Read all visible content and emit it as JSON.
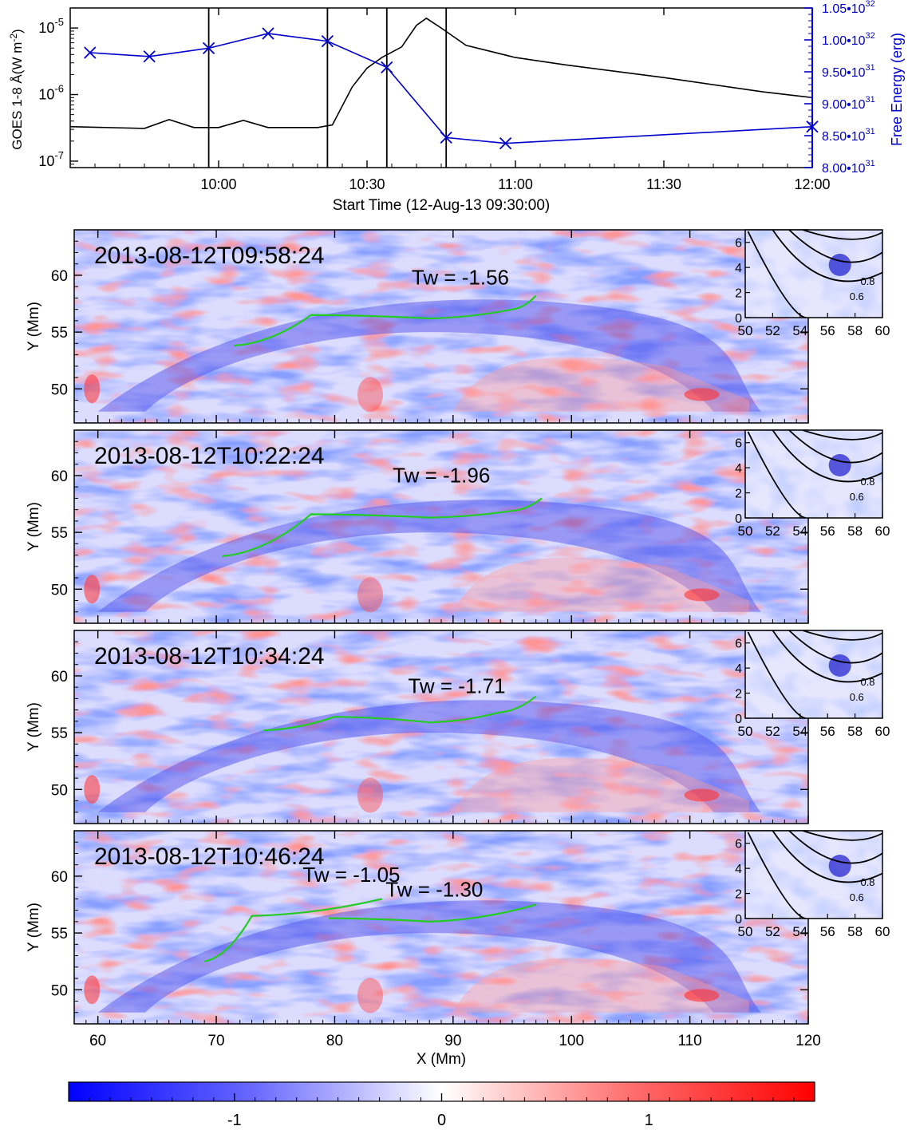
{
  "goes": {
    "xlabel": "Start Time (12-Aug-13 09:30:00)",
    "ylabel_left": "GOES 1-8 Å(W m",
    "ylabel_left_sup": "-2",
    "ylabel_left_close": ")",
    "ylabel_right": "Free Energy (erg)",
    "x_ticks": [
      "10:00",
      "10:30",
      "11:00",
      "11:30",
      "12:00"
    ],
    "y_ticks_left": [
      {
        "base": "10",
        "exp": "-5"
      },
      {
        "base": "10",
        "exp": "-6"
      },
      {
        "base": "10",
        "exp": "-7"
      }
    ],
    "y_ticks_right": [
      {
        "mant": "1.05•10",
        "exp": "32"
      },
      {
        "mant": "1.00•10",
        "exp": "32"
      },
      {
        "mant": "9.50•10",
        "exp": "31"
      },
      {
        "mant": "9.00•10",
        "exp": "31"
      },
      {
        "mant": "8.50•10",
        "exp": "31"
      },
      {
        "mant": "8.00•10",
        "exp": "31"
      }
    ]
  },
  "maps": {
    "ylabel": "Y (Mm)",
    "xlabel": "X (Mm)",
    "x_ticks": [
      "60",
      "70",
      "80",
      "90",
      "100",
      "110",
      "120"
    ],
    "y_ticks": [
      "60",
      "55",
      "50"
    ],
    "panels": [
      {
        "timestamp": "2013-08-12T09:58:24",
        "tw_labels": [
          "Tw = -1.56"
        ]
      },
      {
        "timestamp": "2013-08-12T10:22:24",
        "tw_labels": [
          "Tw = -1.96"
        ]
      },
      {
        "timestamp": "2013-08-12T10:34:24",
        "tw_labels": [
          "Tw = -1.71"
        ]
      },
      {
        "timestamp": "2013-08-12T10:46:24",
        "tw_labels": [
          "Tw = -1.05",
          "Tw = -1.30"
        ]
      }
    ],
    "inset": {
      "x_ticks": [
        "50",
        "52",
        "54",
        "56",
        "58",
        "60"
      ],
      "y_ticks": [
        "6",
        "4",
        "2",
        "0"
      ],
      "contour_labels": [
        "0.8",
        "0.6"
      ]
    }
  },
  "colorbar": {
    "ticks": [
      "-1",
      "0",
      "1"
    ],
    "colors": {
      "negative": "#0000ff",
      "zero": "#ffffff",
      "positive": "#ff0000"
    }
  },
  "colors": {
    "goes_line": "#000000",
    "energy_line": "#0000cc",
    "fluxrope": "#22cc22"
  },
  "chart_data": [
    {
      "type": "line",
      "series": [
        {
          "name": "",
          "axis": "left",
          "unit": "W m^-2",
          "x": [
            "09:30",
            "09:45",
            "09:50",
            "09:55",
            "10:00",
            "10:05",
            "10:10",
            "10:20",
            "10:23",
            "10:27",
            "10:30",
            "10:33",
            "10:37",
            "10:40",
            "10:42",
            "10:45",
            "10:50",
            "11:00",
            "11:10",
            "11:30",
            "11:50",
            "12:00"
          ],
          "y": [
            3.3e-07,
            3.1e-07,
            4.2e-07,
            3.2e-07,
            3.2e-07,
            4.1e-07,
            3.2e-07,
            3.2e-07,
            3.5e-07,
            1.3e-06,
            2.5e-06,
            3.6e-06,
            5.2e-06,
            1.1e-05,
            1.4e-05,
            1e-05,
            5.5e-06,
            3.6e-06,
            2.8e-06,
            1.8e-06,
            1.1e-06,
            9e-07
          ]
        },
        {
          "name": "",
          "axis": "right",
          "unit": "erg",
          "x": [
            "09:34",
            "09:46",
            "09:58",
            "10:10",
            "10:22",
            "10:34",
            "10:46",
            "10:58",
            "12:00"
          ],
          "y": [
            9.8e+31,
            9.74e+31,
            9.87e+31,
            1.01e+32,
            9.98e+31,
            9.57e+31,
            8.47e+31,
            8.38e+31,
            8.64e+31
          ]
        }
      ],
      "xlim": [
        "09:30",
        "12:00"
      ],
      "ylim_left": [
        8e-08,
        2e-05
      ],
      "yscale_left": "log",
      "ylim_right": [
        8e+31,
        1.05e+32
      ],
      "vlines": [
        "09:58",
        "10:22",
        "10:34",
        "10:46"
      ]
    },
    {
      "type": "heatmap",
      "xlim": [
        58,
        120
      ],
      "ylim": [
        47,
        64
      ],
      "color_range": [
        -1.8,
        1.8
      ],
      "colorbar_ticks": [
        -1,
        0,
        1
      ]
    }
  ]
}
